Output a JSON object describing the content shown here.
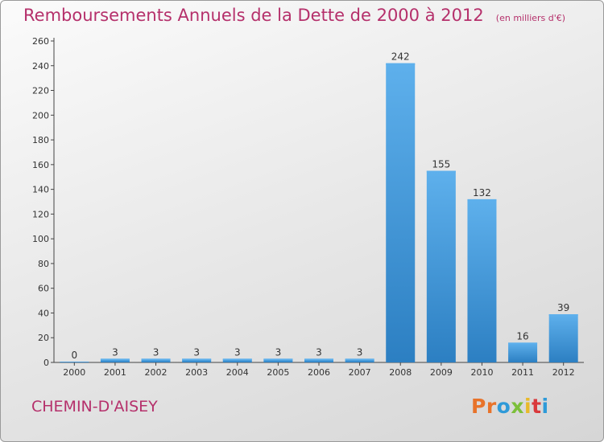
{
  "header": {
    "title": "Remboursements Annuels de la Dette de 2000 à 2012",
    "unit": "(en milliers d'€)"
  },
  "footer": {
    "commune": "CHEMIN-D'AISEY",
    "logo": "Proxiti"
  },
  "colors": {
    "title": "#b5306b",
    "bar_light": "#5eb0ec",
    "bar_dark": "#2c7fc2",
    "logo": [
      "#e8732a",
      "#e8732a",
      "#2f9ad8",
      "#7cbf3a",
      "#e8b92a",
      "#d9393c",
      "#2f9ad8"
    ]
  },
  "chart_data": {
    "type": "bar",
    "categories": [
      "2000",
      "2001",
      "2002",
      "2003",
      "2004",
      "2005",
      "2006",
      "2007",
      "2008",
      "2009",
      "2010",
      "2011",
      "2012"
    ],
    "values": [
      0,
      3,
      3,
      3,
      3,
      3,
      3,
      3,
      242,
      155,
      132,
      16,
      39
    ],
    "title": "Remboursements Annuels de la Dette de 2000 à 2012",
    "ylim": [
      0,
      260
    ],
    "yticks": [
      0,
      20,
      40,
      60,
      80,
      100,
      120,
      140,
      160,
      180,
      200,
      220,
      240,
      260
    ],
    "grid": false,
    "legend": "none"
  }
}
